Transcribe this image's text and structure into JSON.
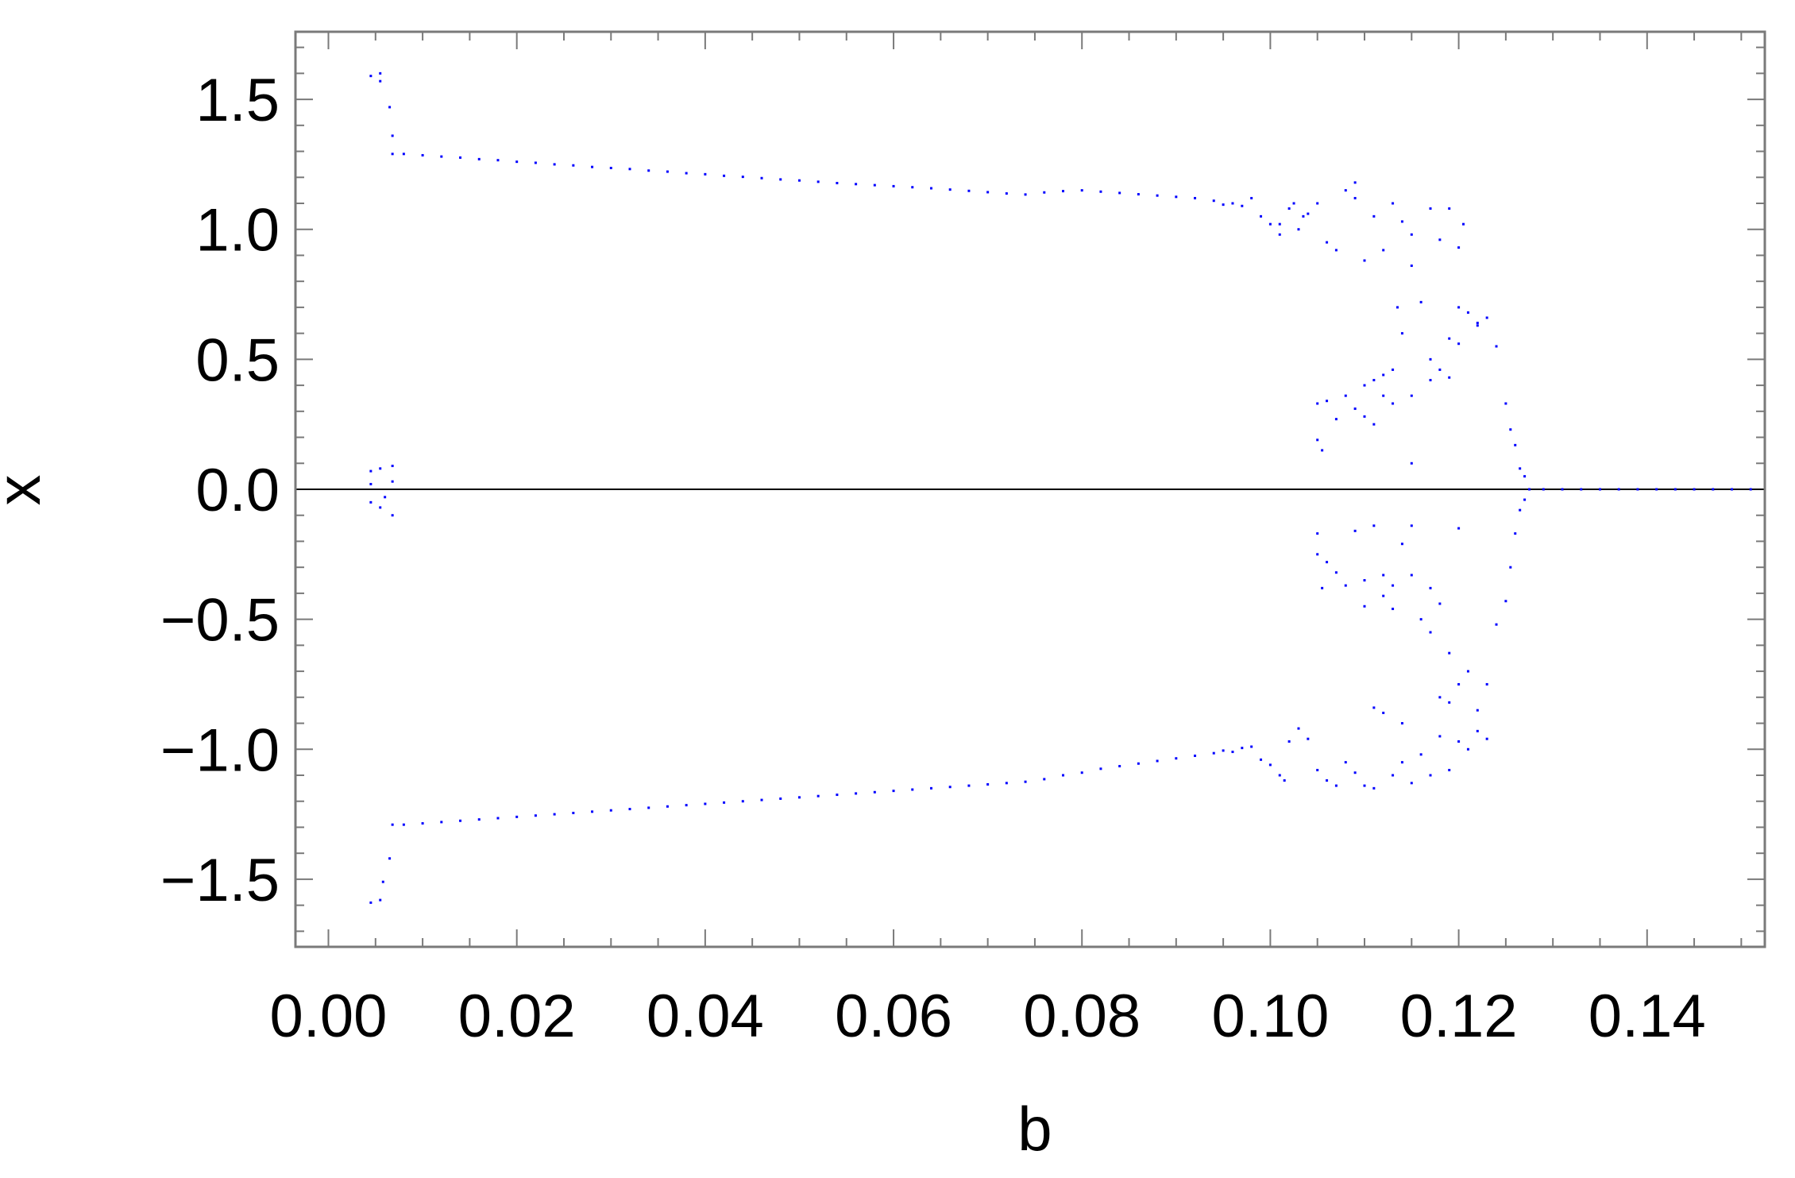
{
  "chart_data": {
    "type": "scatter",
    "title": "",
    "xlabel": "b",
    "ylabel": "x",
    "xlim": [
      -0.0035,
      0.1525
    ],
    "ylim": [
      -1.76,
      1.76
    ],
    "x_ticks": [
      0.0,
      0.02,
      0.04,
      0.06,
      0.08,
      0.1,
      0.12,
      0.14
    ],
    "x_tick_labels": [
      "0.00",
      "0.02",
      "0.04",
      "0.06",
      "0.08",
      "0.10",
      "0.12",
      "0.14"
    ],
    "y_ticks": [
      -1.5,
      -1.0,
      -0.5,
      0.0,
      0.5,
      1.0,
      1.5
    ],
    "y_tick_labels": [
      "−1.5",
      "−1.0",
      "−0.5",
      "0.0",
      "0.5",
      "1.0",
      "1.5"
    ],
    "grid": false,
    "zero_line": true,
    "marker_color": "#0000ff",
    "series": [
      {
        "values": [
          [
            0.0045,
            1.59
          ],
          [
            0.0055,
            1.6
          ],
          [
            0.0055,
            1.57
          ],
          [
            0.0065,
            1.47
          ],
          [
            0.0068,
            1.36
          ],
          [
            0.0068,
            1.29
          ],
          [
            0.0045,
            -1.59
          ],
          [
            0.0055,
            -1.58
          ],
          [
            0.0058,
            -1.51
          ],
          [
            0.0065,
            -1.42
          ],
          [
            0.0068,
            -1.29
          ],
          [
            0.0045,
            0.07
          ],
          [
            0.0045,
            -0.05
          ],
          [
            0.0045,
            0.02
          ],
          [
            0.0055,
            0.08
          ],
          [
            0.0055,
            -0.07
          ],
          [
            0.006,
            -0.03
          ],
          [
            0.0068,
            0.09
          ],
          [
            0.0068,
            -0.1
          ],
          [
            0.0068,
            0.03
          ],
          [
            0.008,
            1.29
          ],
          [
            0.01,
            1.285
          ],
          [
            0.012,
            1.28
          ],
          [
            0.014,
            1.276
          ],
          [
            0.016,
            1.27
          ],
          [
            0.018,
            1.266
          ],
          [
            0.02,
            1.26
          ],
          [
            0.022,
            1.256
          ],
          [
            0.024,
            1.25
          ],
          [
            0.026,
            1.246
          ],
          [
            0.028,
            1.24
          ],
          [
            0.03,
            1.236
          ],
          [
            0.032,
            1.232
          ],
          [
            0.034,
            1.226
          ],
          [
            0.036,
            1.222
          ],
          [
            0.038,
            1.216
          ],
          [
            0.04,
            1.212
          ],
          [
            0.042,
            1.206
          ],
          [
            0.044,
            1.202
          ],
          [
            0.046,
            1.197
          ],
          [
            0.048,
            1.192
          ],
          [
            0.05,
            1.188
          ],
          [
            0.052,
            1.183
          ],
          [
            0.054,
            1.178
          ],
          [
            0.056,
            1.174
          ],
          [
            0.058,
            1.17
          ],
          [
            0.06,
            1.166
          ],
          [
            0.062,
            1.162
          ],
          [
            0.064,
            1.158
          ],
          [
            0.066,
            1.153
          ],
          [
            0.068,
            1.148
          ],
          [
            0.07,
            1.143
          ],
          [
            0.072,
            1.138
          ],
          [
            0.074,
            1.134
          ],
          [
            0.076,
            1.142
          ],
          [
            0.078,
            1.147
          ],
          [
            0.08,
            1.15
          ],
          [
            0.082,
            1.145
          ],
          [
            0.084,
            1.14
          ],
          [
            0.086,
            1.135
          ],
          [
            0.088,
            1.13
          ],
          [
            0.09,
            1.125
          ],
          [
            0.092,
            1.12
          ],
          [
            0.094,
            1.11
          ],
          [
            0.095,
            1.095
          ],
          [
            0.096,
            1.1
          ],
          [
            0.097,
            1.09
          ],
          [
            0.098,
            1.12
          ],
          [
            0.099,
            1.05
          ],
          [
            0.1,
            1.02
          ],
          [
            0.008,
            -1.29
          ],
          [
            0.01,
            -1.285
          ],
          [
            0.012,
            -1.28
          ],
          [
            0.014,
            -1.275
          ],
          [
            0.016,
            -1.27
          ],
          [
            0.018,
            -1.265
          ],
          [
            0.02,
            -1.26
          ],
          [
            0.022,
            -1.255
          ],
          [
            0.024,
            -1.25
          ],
          [
            0.026,
            -1.245
          ],
          [
            0.028,
            -1.24
          ],
          [
            0.03,
            -1.235
          ],
          [
            0.032,
            -1.23
          ],
          [
            0.034,
            -1.225
          ],
          [
            0.036,
            -1.22
          ],
          [
            0.038,
            -1.215
          ],
          [
            0.04,
            -1.21
          ],
          [
            0.042,
            -1.205
          ],
          [
            0.044,
            -1.2
          ],
          [
            0.046,
            -1.195
          ],
          [
            0.048,
            -1.19
          ],
          [
            0.05,
            -1.185
          ],
          [
            0.052,
            -1.18
          ],
          [
            0.054,
            -1.175
          ],
          [
            0.056,
            -1.17
          ],
          [
            0.058,
            -1.165
          ],
          [
            0.06,
            -1.16
          ],
          [
            0.062,
            -1.155
          ],
          [
            0.064,
            -1.15
          ],
          [
            0.066,
            -1.145
          ],
          [
            0.068,
            -1.14
          ],
          [
            0.07,
            -1.135
          ],
          [
            0.072,
            -1.13
          ],
          [
            0.074,
            -1.125
          ],
          [
            0.076,
            -1.115
          ],
          [
            0.078,
            -1.1
          ],
          [
            0.08,
            -1.09
          ],
          [
            0.082,
            -1.075
          ],
          [
            0.084,
            -1.065
          ],
          [
            0.086,
            -1.055
          ],
          [
            0.088,
            -1.045
          ],
          [
            0.09,
            -1.035
          ],
          [
            0.092,
            -1.025
          ],
          [
            0.094,
            -1.015
          ],
          [
            0.095,
            -1.005
          ],
          [
            0.096,
            -1.01
          ],
          [
            0.097,
            -0.995
          ],
          [
            0.098,
            -0.99
          ],
          [
            0.099,
            -1.04
          ],
          [
            0.1,
            -1.06
          ],
          [
            0.101,
            1.02
          ],
          [
            0.101,
            0.98
          ],
          [
            0.102,
            1.08
          ],
          [
            0.1025,
            1.1
          ],
          [
            0.103,
            1.0
          ],
          [
            0.1035,
            1.05
          ],
          [
            0.104,
            1.06
          ],
          [
            0.105,
            1.1
          ],
          [
            0.106,
            0.95
          ],
          [
            0.107,
            0.92
          ],
          [
            0.108,
            1.15
          ],
          [
            0.109,
            1.18
          ],
          [
            0.109,
            1.12
          ],
          [
            0.11,
            0.88
          ],
          [
            0.111,
            1.05
          ],
          [
            0.112,
            0.92
          ],
          [
            0.113,
            1.1
          ],
          [
            0.114,
            1.03
          ],
          [
            0.115,
            0.98
          ],
          [
            0.115,
            0.86
          ],
          [
            0.117,
            1.08
          ],
          [
            0.118,
            0.96
          ],
          [
            0.119,
            1.08
          ],
          [
            0.12,
            0.93
          ],
          [
            0.1205,
            1.02
          ],
          [
            0.101,
            -1.1
          ],
          [
            0.1015,
            -1.12
          ],
          [
            0.102,
            -0.97
          ],
          [
            0.103,
            -0.92
          ],
          [
            0.104,
            -0.96
          ],
          [
            0.105,
            -1.08
          ],
          [
            0.106,
            -1.12
          ],
          [
            0.107,
            -1.14
          ],
          [
            0.108,
            -1.05
          ],
          [
            0.109,
            -1.09
          ],
          [
            0.11,
            -1.14
          ],
          [
            0.111,
            -1.15
          ],
          [
            0.111,
            -0.84
          ],
          [
            0.112,
            -0.86
          ],
          [
            0.113,
            -1.1
          ],
          [
            0.114,
            -1.05
          ],
          [
            0.114,
            -0.9
          ],
          [
            0.115,
            -1.13
          ],
          [
            0.116,
            -1.02
          ],
          [
            0.117,
            -1.1
          ],
          [
            0.118,
            -0.8
          ],
          [
            0.118,
            -0.95
          ],
          [
            0.119,
            -1.08
          ],
          [
            0.119,
            -0.82
          ],
          [
            0.12,
            -0.97
          ],
          [
            0.121,
            -1.0
          ],
          [
            0.122,
            -0.93
          ],
          [
            0.123,
            -0.96
          ],
          [
            0.105,
            0.33
          ],
          [
            0.105,
            0.19
          ],
          [
            0.1055,
            0.15
          ],
          [
            0.106,
            0.34
          ],
          [
            0.107,
            0.27
          ],
          [
            0.108,
            0.36
          ],
          [
            0.109,
            0.31
          ],
          [
            0.11,
            0.4
          ],
          [
            0.11,
            0.28
          ],
          [
            0.111,
            0.42
          ],
          [
            0.111,
            0.25
          ],
          [
            0.112,
            0.44
          ],
          [
            0.112,
            0.36
          ],
          [
            0.113,
            0.33
          ],
          [
            0.113,
            0.46
          ],
          [
            0.1135,
            0.7
          ],
          [
            0.114,
            0.6
          ],
          [
            0.115,
            0.36
          ],
          [
            0.115,
            0.1
          ],
          [
            0.116,
            0.72
          ],
          [
            0.117,
            0.42
          ],
          [
            0.117,
            0.5
          ],
          [
            0.118,
            0.46
          ],
          [
            0.119,
            0.58
          ],
          [
            0.119,
            0.43
          ],
          [
            0.12,
            0.56
          ],
          [
            0.12,
            0.7
          ],
          [
            0.121,
            0.68
          ],
          [
            0.122,
            0.63
          ],
          [
            0.122,
            0.64
          ],
          [
            0.123,
            0.66
          ],
          [
            0.124,
            0.55
          ],
          [
            0.125,
            0.33
          ],
          [
            0.1255,
            0.23
          ],
          [
            0.126,
            0.17
          ],
          [
            0.1265,
            0.08
          ],
          [
            0.127,
            0.05
          ],
          [
            0.105,
            -0.17
          ],
          [
            0.105,
            -0.25
          ],
          [
            0.1055,
            -0.38
          ],
          [
            0.106,
            -0.28
          ],
          [
            0.107,
            -0.32
          ],
          [
            0.108,
            -0.37
          ],
          [
            0.109,
            -0.16
          ],
          [
            0.11,
            -0.35
          ],
          [
            0.11,
            -0.45
          ],
          [
            0.111,
            -0.14
          ],
          [
            0.112,
            -0.33
          ],
          [
            0.112,
            -0.41
          ],
          [
            0.113,
            -0.37
          ],
          [
            0.113,
            -0.46
          ],
          [
            0.114,
            -0.21
          ],
          [
            0.115,
            -0.14
          ],
          [
            0.115,
            -0.33
          ],
          [
            0.116,
            -0.5
          ],
          [
            0.117,
            -0.38
          ],
          [
            0.117,
            -0.55
          ],
          [
            0.118,
            -0.44
          ],
          [
            0.119,
            -0.63
          ],
          [
            0.12,
            -0.15
          ],
          [
            0.12,
            -0.75
          ],
          [
            0.121,
            -0.7
          ],
          [
            0.122,
            -0.85
          ],
          [
            0.123,
            -0.75
          ],
          [
            0.124,
            -0.52
          ],
          [
            0.125,
            -0.43
          ],
          [
            0.1255,
            -0.3
          ],
          [
            0.126,
            -0.17
          ],
          [
            0.1265,
            -0.08
          ],
          [
            0.127,
            -0.04
          ],
          [
            0.1275,
            0.0
          ],
          [
            0.129,
            0.0
          ],
          [
            0.131,
            0.0
          ],
          [
            0.133,
            0.0
          ],
          [
            0.135,
            0.0
          ],
          [
            0.137,
            0.0
          ],
          [
            0.139,
            0.0
          ],
          [
            0.141,
            0.0
          ],
          [
            0.143,
            0.0
          ],
          [
            0.145,
            0.0
          ],
          [
            0.147,
            0.0
          ],
          [
            0.149,
            0.0
          ],
          [
            0.151,
            0.0
          ]
        ]
      }
    ]
  }
}
